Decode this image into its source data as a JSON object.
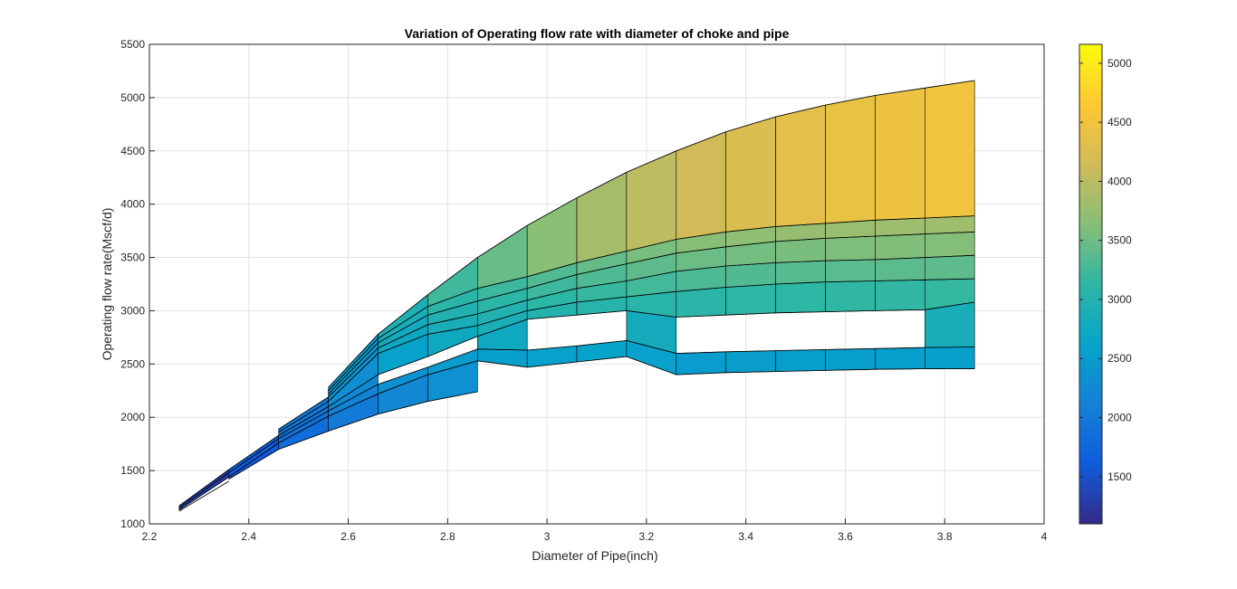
{
  "chart_data": {
    "type": "surface",
    "title": "Variation of Operating flow rate with diameter of choke and pipe",
    "xlabel": "Diameter of Pipe(inch)",
    "ylabel": "Operating flow rate(Mscf/d)",
    "xlim": [
      2.2,
      4
    ],
    "ylim": [
      1000,
      5500
    ],
    "xticks": [
      "2.2",
      "2.4",
      "2.6",
      "2.8",
      "3",
      "3.2",
      "3.4",
      "3.6",
      "3.8",
      "4"
    ],
    "yticks": [
      "1000",
      "1500",
      "2000",
      "2500",
      "3000",
      "3500",
      "4000",
      "4500",
      "5000",
      "5500"
    ],
    "grid": true,
    "colormap": "parula",
    "colorbar": {
      "ticks": [
        "1500",
        "2000",
        "2500",
        "3000",
        "3500",
        "4000",
        "4500",
        "5000"
      ],
      "range": [
        1100,
        5160
      ]
    },
    "pipe_diameters": [
      2.26,
      2.36,
      2.46,
      2.56,
      2.66,
      2.76,
      2.86,
      2.96,
      3.06,
      3.16,
      3.26,
      3.36,
      3.46,
      3.56,
      3.66,
      3.76,
      3.86
    ],
    "choke_curves": [
      [
        1100,
        null,
        null,
        null,
        null,
        null,
        null,
        null,
        null,
        null,
        null,
        null,
        null,
        null,
        null,
        null,
        null
      ],
      [
        1120,
        1400,
        null,
        null,
        null,
        null,
        null,
        null,
        null,
        null,
        null,
        null,
        null,
        null,
        null,
        null,
        null
      ],
      [
        null,
        1420,
        1700,
        1870,
        2030,
        2150,
        2240,
        null,
        null,
        null,
        null,
        null,
        null,
        null,
        null,
        null,
        null
      ],
      [
        1130,
        1440,
        1760,
        2010,
        2220,
        2400,
        2530,
        2470,
        2520,
        2570,
        2400,
        2420,
        2430,
        2440,
        2450,
        2455,
        2455
      ],
      [
        1150,
        1480,
        1800,
        2060,
        2310,
        2470,
        2640,
        2630,
        2670,
        2720,
        2600,
        2615,
        2625,
        2635,
        2645,
        2655,
        2660
      ],
      [
        1170,
        1510,
        1830,
        2100,
        2400,
        2570,
        2760,
        2920,
        2960,
        3000,
        2940,
        2960,
        2980,
        2990,
        3000,
        3010,
        3080
      ],
      [
        null,
        null,
        1860,
        2150,
        2600,
        2780,
        2860,
        3000,
        3080,
        3130,
        3180,
        3220,
        3250,
        3270,
        3280,
        3290,
        3300
      ],
      [
        null,
        null,
        1890,
        2190,
        2650,
        2870,
        2970,
        3100,
        3210,
        3280,
        3370,
        3420,
        3450,
        3470,
        3480,
        3500,
        3520
      ],
      [
        null,
        null,
        null,
        2220,
        2700,
        2960,
        3090,
        3210,
        3340,
        3440,
        3540,
        3600,
        3650,
        3680,
        3700,
        3720,
        3740
      ],
      [
        null,
        null,
        null,
        2250,
        2740,
        3040,
        3210,
        3320,
        3450,
        3560,
        3670,
        3740,
        3790,
        3820,
        3850,
        3870,
        3890
      ],
      [
        null,
        null,
        null,
        2280,
        2780,
        3150,
        3500,
        3800,
        4060,
        4300,
        4500,
        4680,
        4820,
        4930,
        5020,
        5090,
        5160
      ]
    ],
    "gaps": [
      {
        "x": [
          2.66,
          2.86
        ],
        "between": [
          4,
          5
        ]
      },
      {
        "x": [
          2.96,
          3.16
        ],
        "between": [
          4,
          5
        ]
      },
      {
        "x": [
          3.26,
          3.76
        ],
        "between": [
          4,
          5
        ]
      }
    ]
  }
}
